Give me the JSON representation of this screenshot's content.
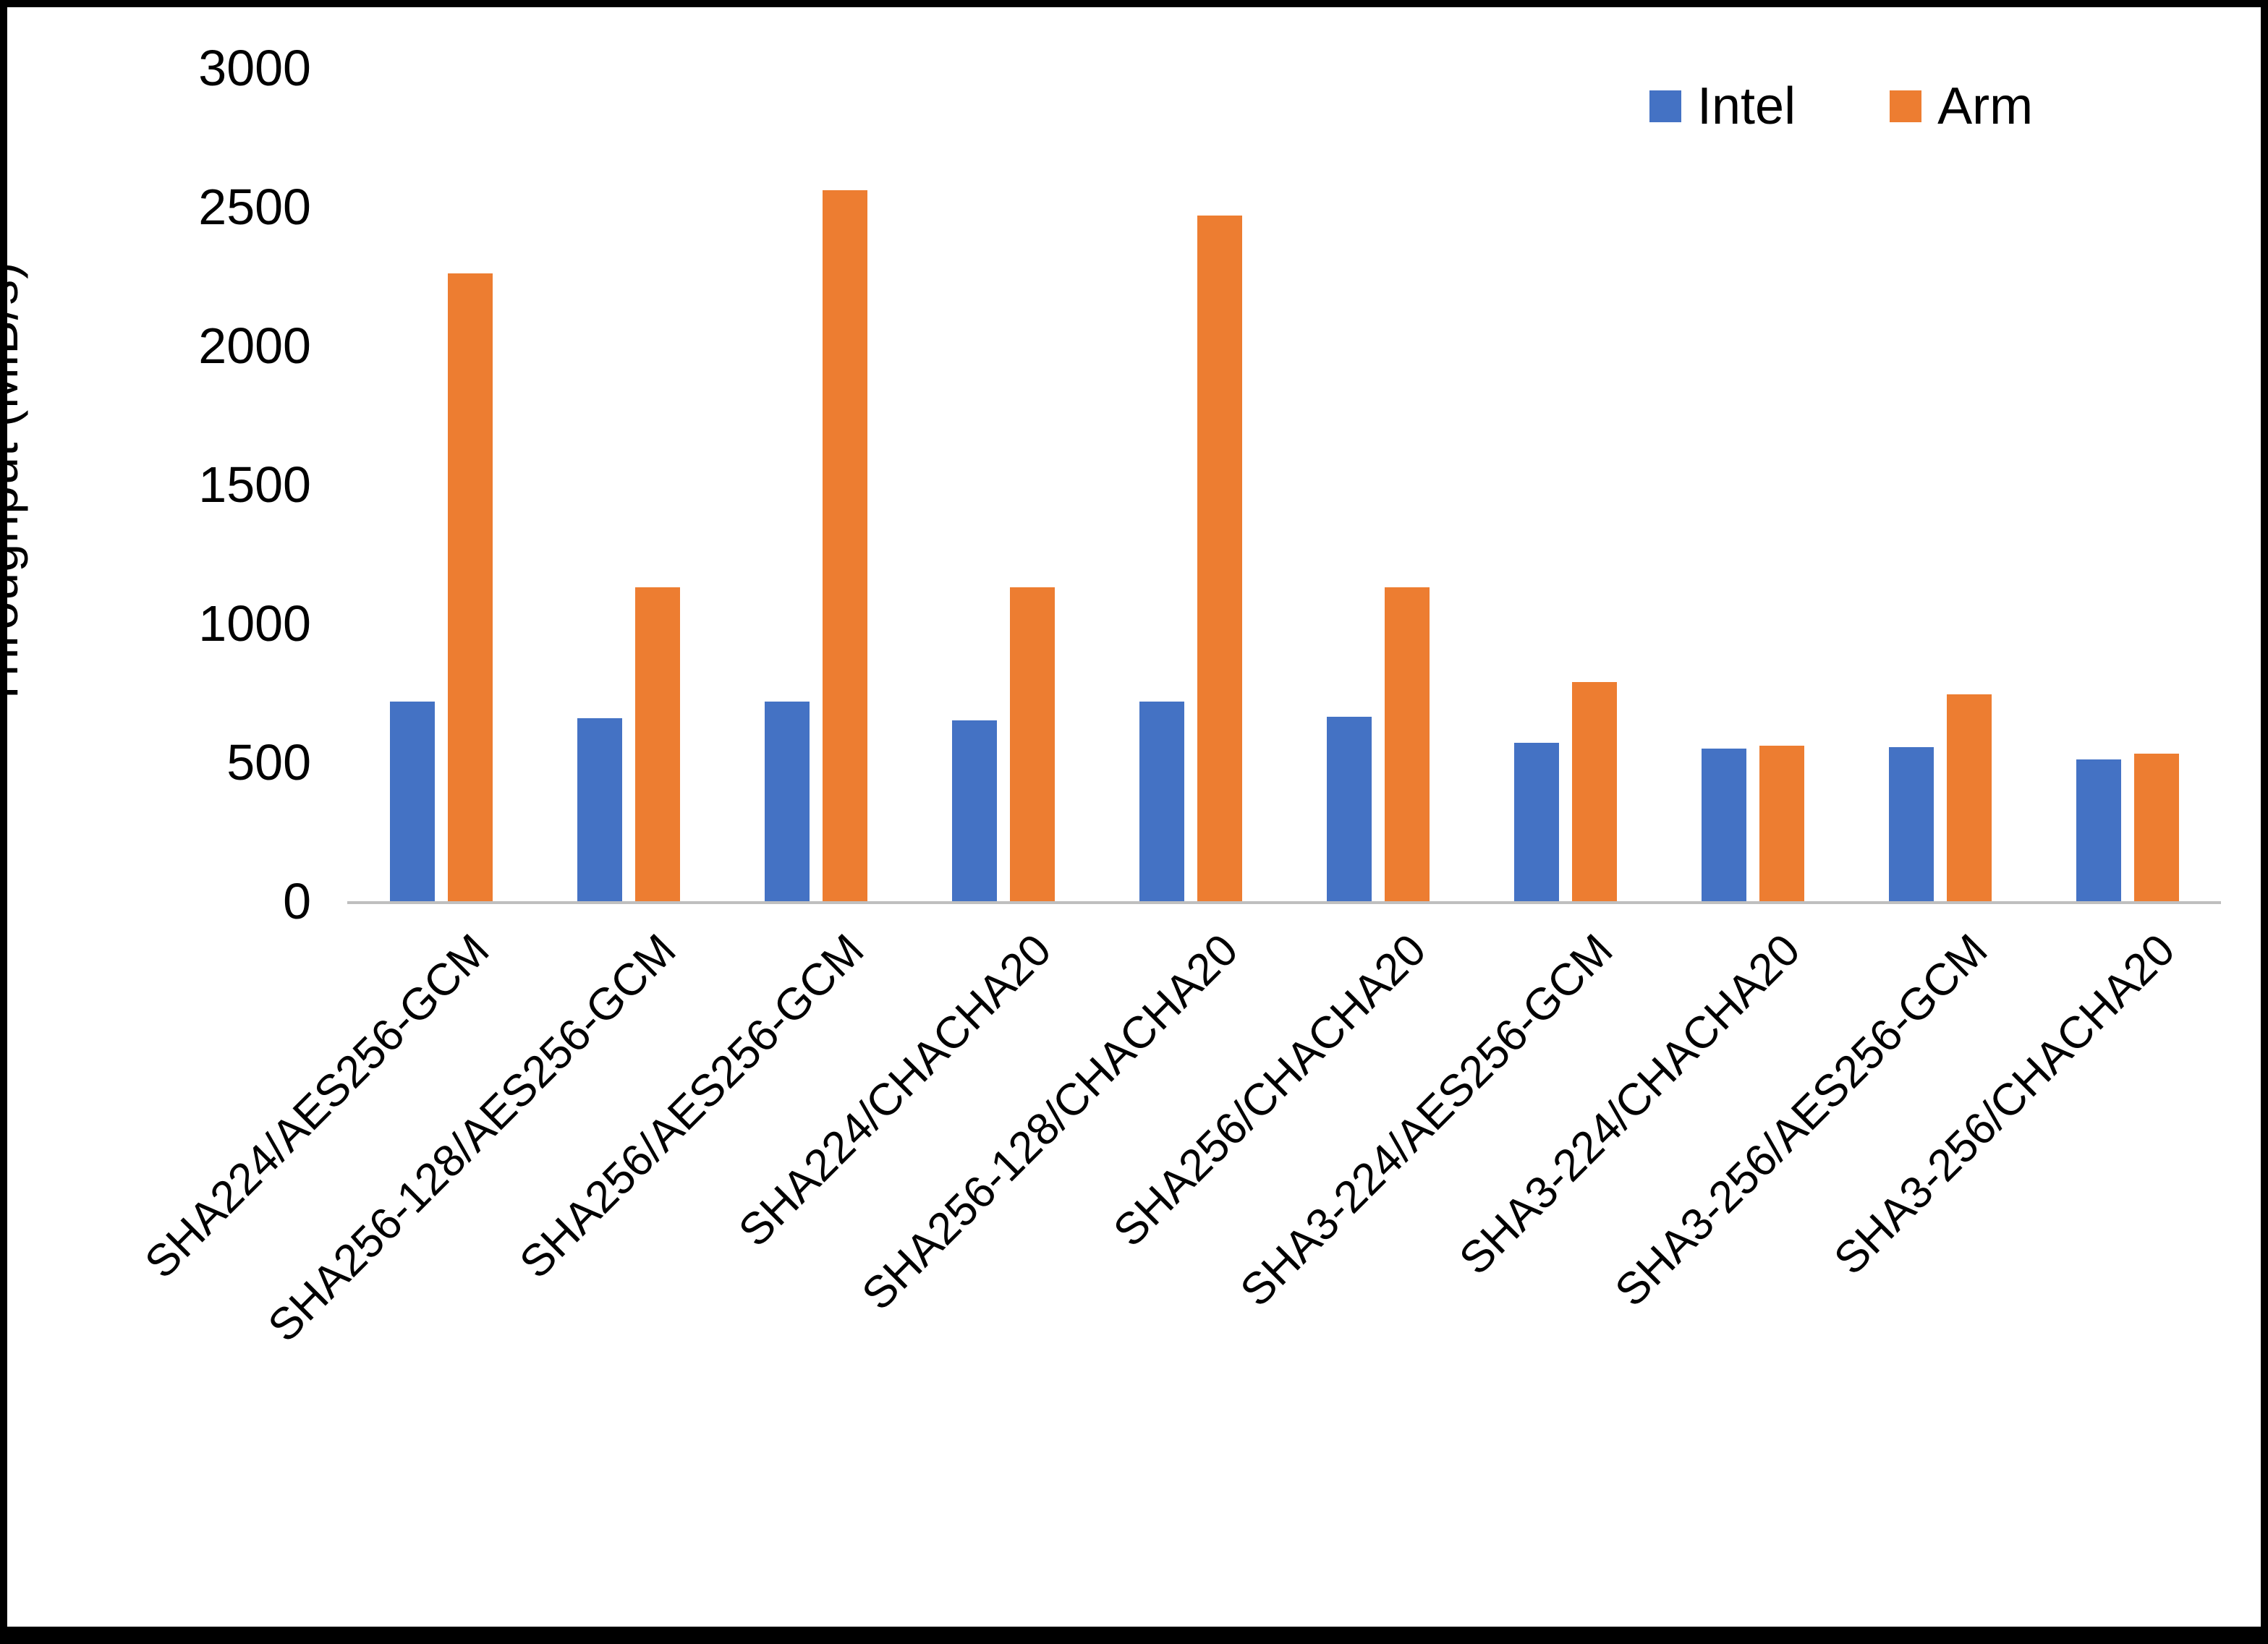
{
  "chart_data": {
    "type": "bar",
    "title": "",
    "xlabel": "",
    "ylabel": "Throughput (MiB/s)",
    "ylim": [
      0,
      3000
    ],
    "ytick_step": 500,
    "grid": false,
    "legend_position": "top-right",
    "categories": [
      "SHA224/AES256-GCM",
      "SHA256-128/AES256-GCM",
      "SHA256/AES256-GCM",
      "SHA224/CHACHA20",
      "SHA256-128/CHACHA20",
      "SHA256/CHACHA20",
      "SHA3-224/AES256-GCM",
      "SHA3-224/CHACHA20",
      "SHA3-256/AES256-GCM",
      "SHA3-256/CHACHA20"
    ],
    "series": [
      {
        "name": "Intel",
        "color": "#4472C4",
        "values": [
          720,
          660,
          720,
          650,
          720,
          665,
          570,
          550,
          555,
          510
        ]
      },
      {
        "name": "Arm",
        "color": "#ED7D31",
        "values": [
          2260,
          1130,
          2560,
          1130,
          2470,
          1130,
          790,
          560,
          745,
          530
        ]
      }
    ]
  }
}
